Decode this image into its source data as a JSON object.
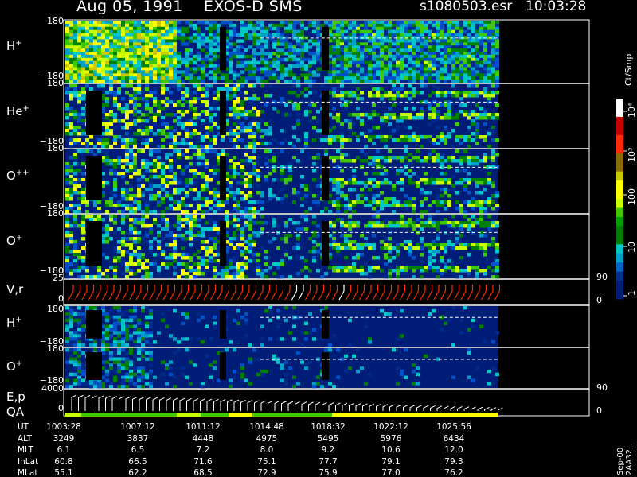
{
  "header": {
    "date": "Aug 05, 1991",
    "instrument": "EXOS-D SMS",
    "file": "s1080503.esr",
    "time": "10:03:28"
  },
  "colorbar": {
    "units": "Ct/Smp",
    "labels": [
      "10⁴",
      "10³",
      "100",
      "10",
      "1"
    ],
    "colors": [
      "#ffffff",
      "#ffffff",
      "#c80000",
      "#c80000",
      "#ff2a00",
      "#ff2a00",
      "#8a6b00",
      "#8a6b00",
      "#c8c800",
      "#ffff00",
      "#ffff00",
      "#c8ff00",
      "#40c800",
      "#00a000",
      "#008000",
      "#008000",
      "#00c8c8",
      "#00a0c8",
      "#0064c8",
      "#003296",
      "#001e78",
      "#001e78"
    ]
  },
  "panels": [
    {
      "label": "H",
      "sup": "+",
      "top_tick": "180",
      "bottom_tick": "−180"
    },
    {
      "label": "He",
      "sup": "+",
      "top_tick": "180",
      "bottom_tick": "−180"
    },
    {
      "label": "O",
      "sup": "++",
      "top_tick": "180",
      "bottom_tick": "−180"
    },
    {
      "label": "O",
      "sup": "+",
      "top_tick": "180",
      "bottom_tick": "−180"
    },
    {
      "label": "V,r",
      "sup": "",
      "top_tick": "25",
      "bottom_tick": "0",
      "right_top": "90",
      "right_bottom": "0"
    },
    {
      "label": "H",
      "sup": "+",
      "top_tick": "180",
      "bottom_tick": "−180"
    },
    {
      "label": "O",
      "sup": "+",
      "top_tick": "180",
      "bottom_tick": "−180"
    },
    {
      "label": "E,p",
      "label2": "QA",
      "sup": "",
      "top_tick": "4000",
      "bottom_tick": "0",
      "right_top": "90",
      "right_bottom": "0"
    }
  ],
  "ephemeris": {
    "rows": [
      {
        "name": "UT",
        "values": [
          "1003:28",
          "1007:12",
          "1011:12",
          "1014:48",
          "1018:32",
          "1022:12",
          "1025:56"
        ]
      },
      {
        "name": "ALT",
        "values": [
          "3249",
          "3837",
          "4448",
          "4975",
          "5495",
          "5976",
          "6434"
        ]
      },
      {
        "name": "MLT",
        "values": [
          "6.1",
          "6.5",
          "7.2",
          "8.0",
          "9.2",
          "10.6",
          "12.0"
        ]
      },
      {
        "name": "InLat",
        "values": [
          "60.8",
          "66.5",
          "71.6",
          "75.1",
          "77.7",
          "79.1",
          "79.3"
        ]
      },
      {
        "name": "MLat",
        "values": [
          "55.1",
          "62.2",
          "68.5",
          "72.9",
          "75.9",
          "77.0",
          "76.2"
        ]
      }
    ]
  },
  "footer": {
    "version": "Sep-00 2AA32L"
  },
  "chart_data": {
    "type": "heatmap",
    "title": "Aug 05, 1991   EXOS-D SMS",
    "x_labels": [
      "1003:28",
      "1007:12",
      "1011:12",
      "1014:48",
      "1018:32",
      "1022:12",
      "1025:56"
    ],
    "species_panels": [
      "H+",
      "He+",
      "O++",
      "O+",
      "H+",
      "O+"
    ],
    "y_range": [
      -180,
      180
    ],
    "colorscale_units": "Ct/Smp",
    "colorscale_range": [
      1,
      10000
    ],
    "colorscale_log": true
  }
}
